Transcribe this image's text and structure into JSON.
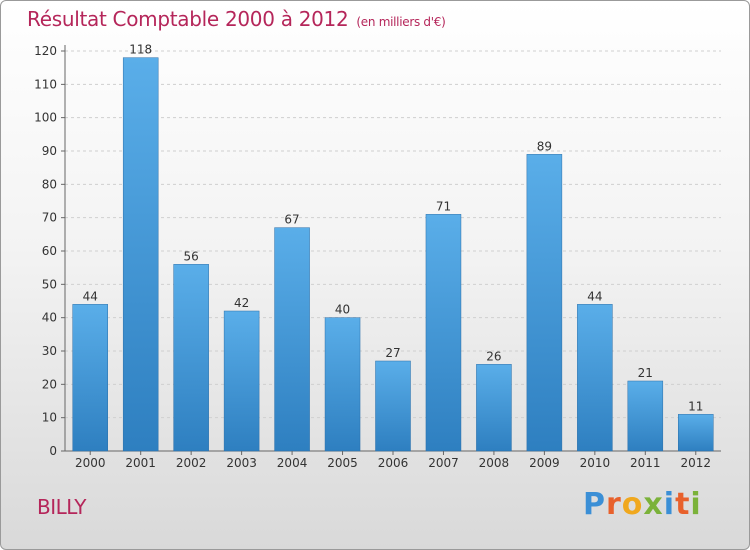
{
  "chart_data": {
    "type": "bar",
    "title": "Résultat Comptable 2000 à 2012",
    "subtitle": "(en milliers d'€)",
    "categories": [
      "2000",
      "2001",
      "2002",
      "2003",
      "2004",
      "2005",
      "2006",
      "2007",
      "2008",
      "2009",
      "2010",
      "2011",
      "2012"
    ],
    "values": [
      44,
      118,
      56,
      42,
      67,
      40,
      27,
      71,
      26,
      89,
      44,
      21,
      11
    ],
    "ylim": [
      0,
      120
    ],
    "yticks": [
      0,
      10,
      20,
      30,
      40,
      50,
      60,
      70,
      80,
      90,
      100,
      110,
      120
    ],
    "xlabel": "",
    "ylabel": "",
    "colors": {
      "bar_top": "#5aaee9",
      "bar_bottom": "#2e7fc0",
      "title": "#b5265a"
    }
  },
  "footer": {
    "commune": "BILLY",
    "logo_letters": [
      "P",
      "r",
      "o",
      "x",
      "i",
      "t",
      "i"
    ],
    "logo_colors": [
      "#3b8fd6",
      "#e8612c",
      "#f0a81e",
      "#7bb23a",
      "#3b8fd6",
      "#e8612c",
      "#7bb23a"
    ]
  }
}
